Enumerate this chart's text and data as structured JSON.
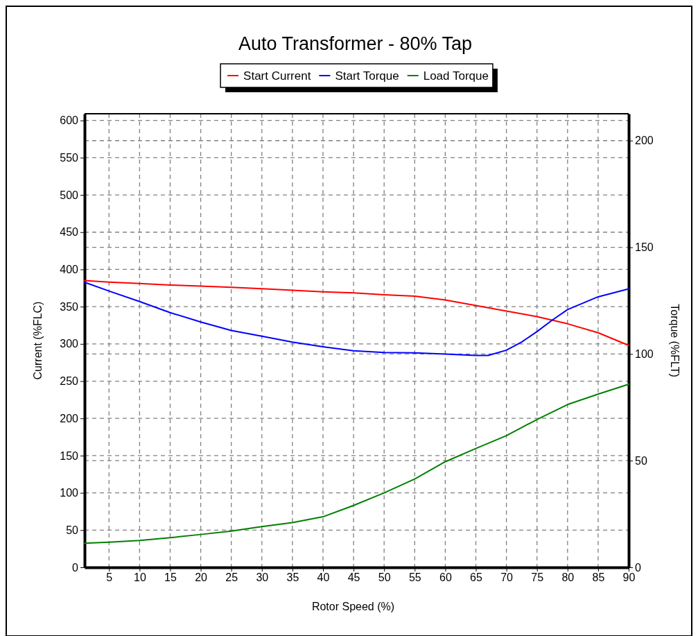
{
  "chart_data": {
    "type": "line",
    "title": "Auto Transformer - 80% Tap",
    "xlabel": "Rotor Speed (%)",
    "ylabel": "Current (%FLC)",
    "y2label": "Torque (%FLT)",
    "xlim": [
      1,
      90
    ],
    "xticks": [
      5,
      10,
      15,
      20,
      25,
      30,
      35,
      40,
      45,
      50,
      55,
      60,
      65,
      70,
      75,
      80,
      85,
      90
    ],
    "ylim": [
      0,
      609
    ],
    "yticks": [
      0,
      50,
      100,
      150,
      200,
      250,
      300,
      350,
      400,
      450,
      500,
      550,
      600
    ],
    "y2lim": [
      0,
      212.6
    ],
    "y2ticks": [
      0,
      50,
      100,
      150,
      200
    ],
    "grid": true,
    "legend": "top",
    "line_style": "solid",
    "x": [
      1,
      5,
      10,
      15,
      20,
      25,
      30,
      35,
      40,
      45,
      50,
      55,
      60,
      65,
      70,
      75,
      80,
      85,
      90
    ],
    "series": [
      {
        "name": "Start Current",
        "color": "#ff0000",
        "values": [
          385,
          383,
          381,
          379,
          377.6,
          376,
          374,
          372,
          370,
          368.5,
          366,
          364,
          359,
          351.5,
          344,
          336.6,
          327,
          315,
          298
        ]
      },
      {
        "name": "Start Torque",
        "color": "#0000ff",
        "axis": "y2",
        "x": [
          1,
          5,
          10,
          15,
          20,
          25,
          30,
          35,
          40,
          45,
          50,
          55,
          60,
          65,
          67,
          70,
          72.5,
          75,
          77.5,
          80,
          85,
          90
        ],
        "values": [
          133.6,
          129.5,
          124.6,
          119.4,
          115,
          111,
          108.3,
          105.6,
          103.4,
          101.5,
          100.7,
          100.5,
          100,
          99.3,
          99.3,
          101.8,
          105.6,
          110.5,
          115.9,
          120.8,
          126.8,
          130.5
        ]
      },
      {
        "name": "Load Torque",
        "color": "#008000",
        "axis": "y2",
        "values": [
          11.3,
          11.8,
          12.6,
          13.9,
          15.4,
          17,
          19.1,
          21,
          23.7,
          29,
          34.9,
          41.4,
          49.5,
          55.7,
          61.7,
          69.3,
          76.3,
          81.2,
          85.8
        ]
      }
    ]
  }
}
